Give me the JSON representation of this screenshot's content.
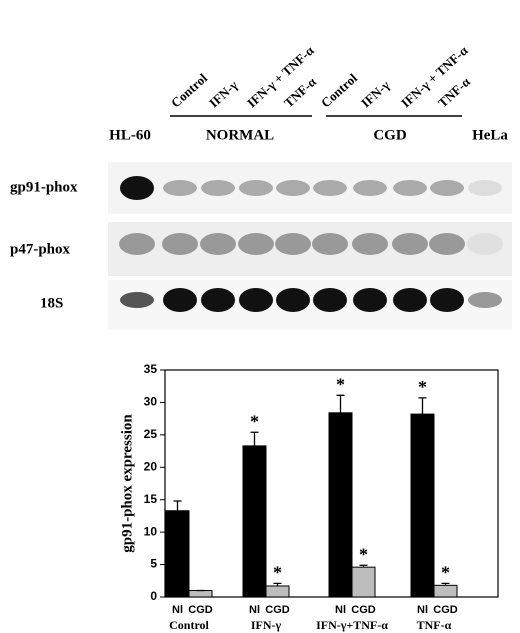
{
  "blot": {
    "lanes": [
      "Control",
      "IFN-γ",
      "IFN-γ + TNF-α",
      "TNF-α",
      "Control",
      "IFN-γ",
      "IFN-γ + TNF-α",
      "TNF-α"
    ],
    "groups": [
      "HL-60",
      "NORMAL",
      "CGD",
      "HeLa"
    ],
    "rows": [
      "gp91-phox",
      "p47-phox",
      "18S"
    ]
  },
  "chart_data": {
    "type": "bar",
    "y_label": "gp91-phox expression",
    "categories": [
      "Control",
      "IFN-γ",
      "IFN-γ+TNF-α",
      "TNF-α"
    ],
    "series": [
      {
        "name": "Nl",
        "color": "#000000",
        "values": [
          13.3,
          23.3,
          28.4,
          28.2
        ],
        "errors": [
          1.5,
          2.1,
          2.7,
          2.5
        ],
        "markers": [
          null,
          "*",
          "*",
          "*"
        ]
      },
      {
        "name": "CGD",
        "color": "#bdbdbd",
        "values": [
          1.0,
          1.7,
          4.6,
          1.8
        ],
        "errors": [
          0,
          0.4,
          0.3,
          0.3
        ],
        "markers": [
          null,
          "*",
          "*",
          "*"
        ]
      }
    ],
    "ylim": [
      0,
      35
    ],
    "yticks": [
      0,
      5,
      10,
      15,
      20,
      25,
      30,
      35
    ]
  }
}
